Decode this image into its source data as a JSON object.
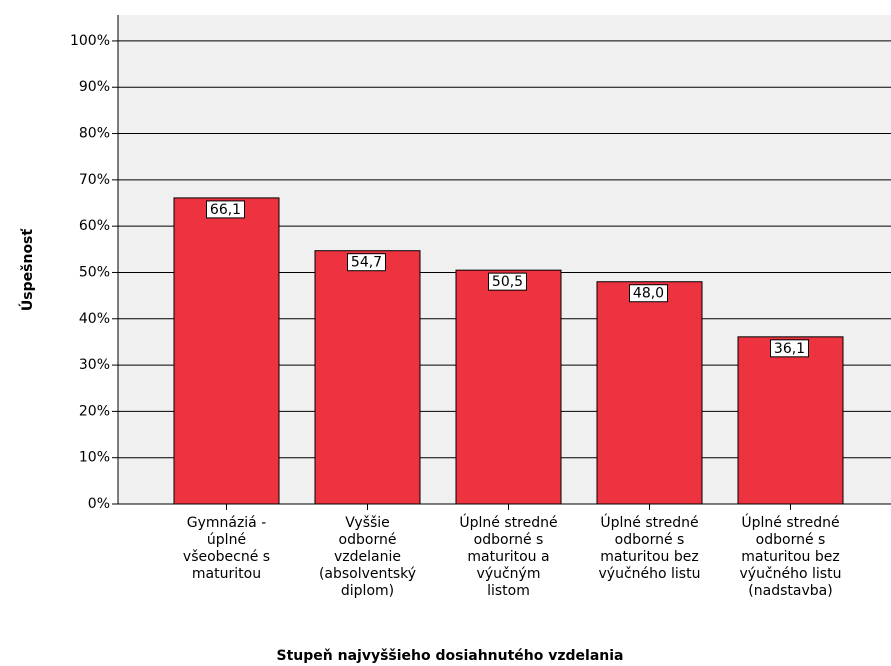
{
  "chart_data": {
    "type": "bar",
    "x_label": "Stupeň najvyššieho dosiahnutého vzdelania",
    "y_label": "Úspešnosť",
    "categories": [
      [
        "Gymnáziá -",
        "úplné",
        "všeobecné s",
        "maturitou"
      ],
      [
        "Vyššie",
        "odborné",
        "vzdelanie",
        "(absolventský",
        "diplom)"
      ],
      [
        "Úplné stredné",
        "odborné s",
        "maturitou a",
        "výučným",
        "listom"
      ],
      [
        "Úplné stredné",
        "odborné s",
        "maturitou bez",
        "výučného listu"
      ],
      [
        "Úplné stredné",
        "odborné s",
        "maturitou bez",
        "výučného listu",
        "(nadstavba)"
      ]
    ],
    "values": [
      66.1,
      54.7,
      50.5,
      48.0,
      36.1
    ],
    "value_labels": [
      "66,1",
      "54,7",
      "50,5",
      "48,0",
      "36,1"
    ],
    "color": "#ee3340",
    "ylim": [
      0,
      105.6
    ],
    "yticks": [
      {
        "value": 0,
        "label": "0%"
      },
      {
        "value": 10,
        "label": "10%"
      },
      {
        "value": 20,
        "label": "20%"
      },
      {
        "value": 30,
        "label": "30%"
      },
      {
        "value": 40,
        "label": "40%"
      },
      {
        "value": 50,
        "label": "50%"
      },
      {
        "value": 60,
        "label": "60%"
      },
      {
        "value": 70,
        "label": "70%"
      },
      {
        "value": 80,
        "label": "80%"
      },
      {
        "value": 90,
        "label": "90%"
      },
      {
        "value": 100,
        "label": "100%"
      }
    ],
    "grid": true
  }
}
